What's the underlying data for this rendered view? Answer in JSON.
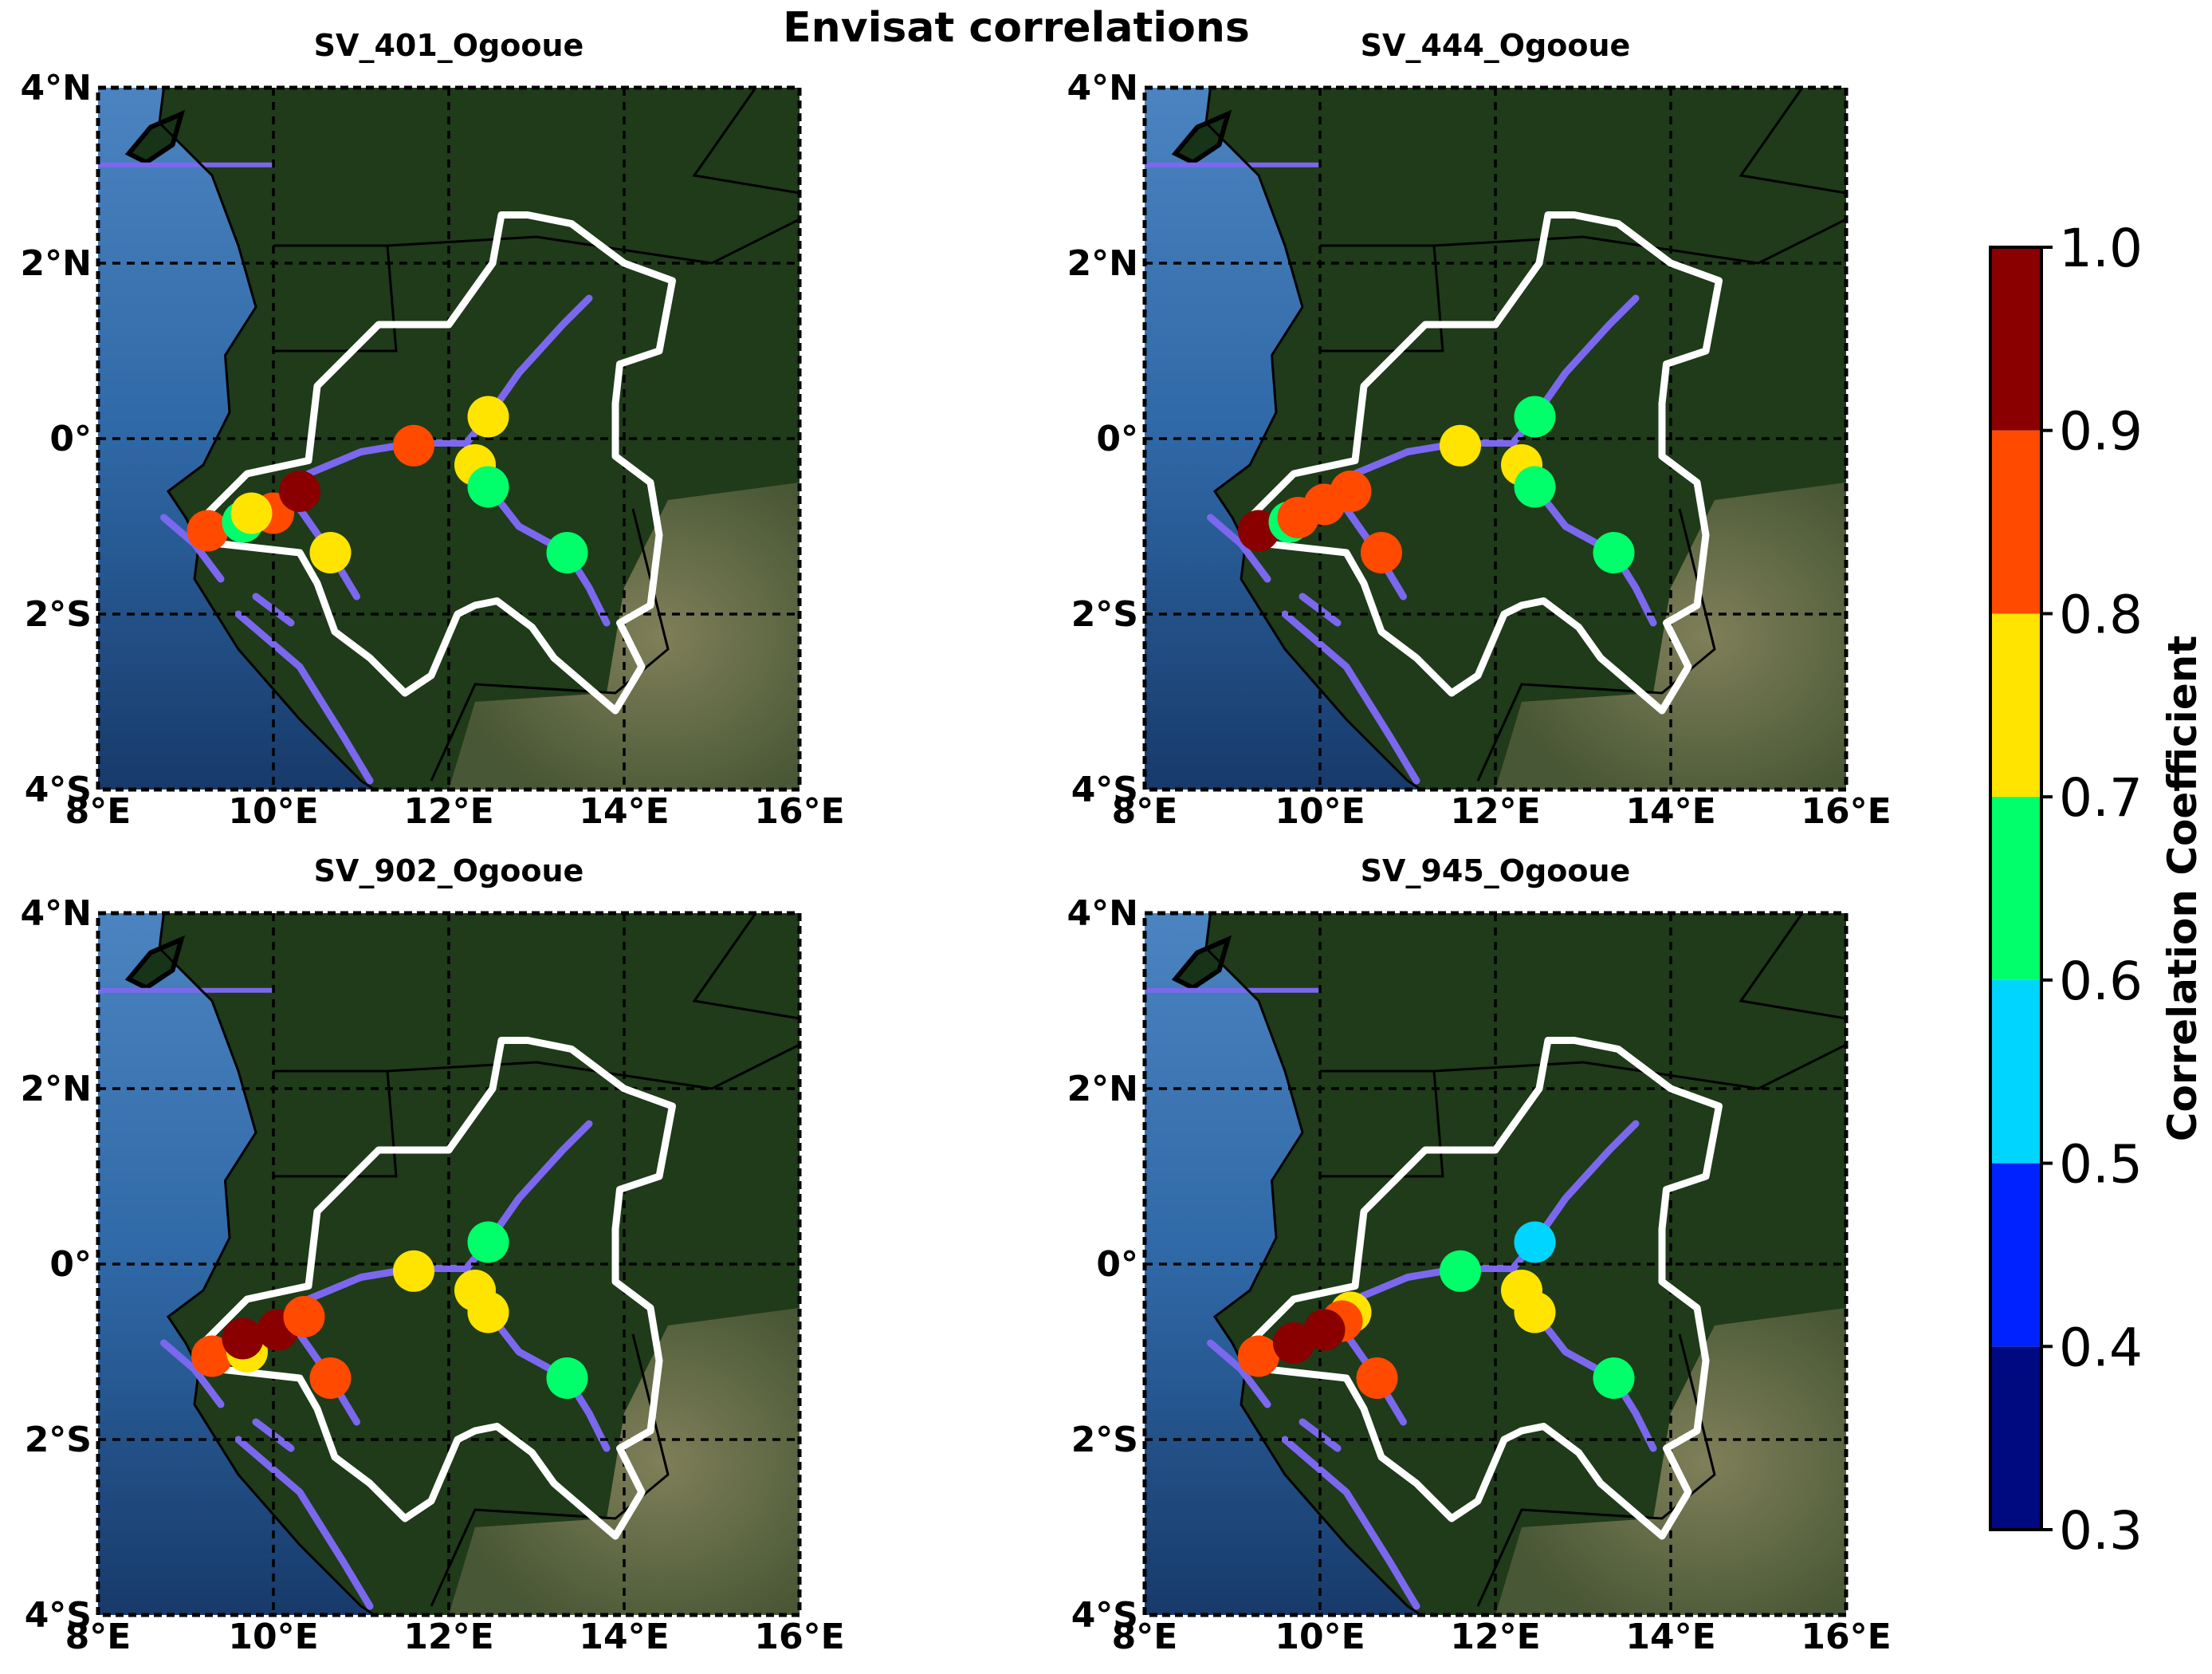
{
  "figure": {
    "title": "Envisat correlations"
  },
  "map_extent": {
    "lon": [
      8,
      16
    ],
    "lat": [
      -4,
      4
    ]
  },
  "x_ticks": [
    {
      "value": 8,
      "label": "8°E"
    },
    {
      "value": 10,
      "label": "10°E"
    },
    {
      "value": 12,
      "label": "12°E"
    },
    {
      "value": 14,
      "label": "14°E"
    },
    {
      "value": 16,
      "label": "16°E"
    }
  ],
  "y_ticks": [
    {
      "value": 4,
      "label": "4°N"
    },
    {
      "value": 2,
      "label": "2°N"
    },
    {
      "value": 0,
      "label": "0°"
    },
    {
      "value": -2,
      "label": "2°S"
    },
    {
      "value": -4,
      "label": "4°S"
    }
  ],
  "colors": {
    "ocean": "#2f69a8",
    "land": "#1f3b1a",
    "savanna": "#7d7b58",
    "river": "#7b68ee",
    "basin_outline": "#ffffff",
    "gridline": "#000000"
  },
  "colorbar": {
    "label": "Correlation Coefficient",
    "ticks": [
      "1.0",
      "0.9",
      "0.8",
      "0.7",
      "0.6",
      "0.5",
      "0.4",
      "0.3"
    ],
    "bins": [
      {
        "min": 0.3,
        "max": 0.4,
        "color": "#000a80"
      },
      {
        "min": 0.4,
        "max": 0.5,
        "color": "#0022ff"
      },
      {
        "min": 0.5,
        "max": 0.6,
        "color": "#00d5ff"
      },
      {
        "min": 0.6,
        "max": 0.7,
        "color": "#00ff6a"
      },
      {
        "min": 0.7,
        "max": 0.8,
        "color": "#ffe400"
      },
      {
        "min": 0.8,
        "max": 0.9,
        "color": "#ff4a00"
      },
      {
        "min": 0.9,
        "max": 1.0,
        "color": "#8a0000"
      }
    ]
  },
  "panels": [
    {
      "title": "SV_401_Ogooue",
      "stations": [
        {
          "lon": 9.25,
          "lat": -1.05,
          "r": 0.85
        },
        {
          "lon": 9.65,
          "lat": -0.95,
          "r": 0.65
        },
        {
          "lon": 10.0,
          "lat": -0.85,
          "r": 0.85
        },
        {
          "lon": 10.3,
          "lat": -0.6,
          "r": 0.95
        },
        {
          "lon": 9.75,
          "lat": -0.85,
          "r": 0.75
        },
        {
          "lon": 10.65,
          "lat": -1.3,
          "r": 0.75
        },
        {
          "lon": 11.6,
          "lat": -0.08,
          "r": 0.85
        },
        {
          "lon": 12.45,
          "lat": 0.25,
          "r": 0.75
        },
        {
          "lon": 12.3,
          "lat": -0.3,
          "r": 0.75
        },
        {
          "lon": 12.45,
          "lat": -0.55,
          "r": 0.65
        },
        {
          "lon": 13.35,
          "lat": -1.3,
          "r": 0.65
        }
      ]
    },
    {
      "title": "SV_444_Ogooue",
      "stations": [
        {
          "lon": 9.3,
          "lat": -1.05,
          "r": 0.95
        },
        {
          "lon": 9.65,
          "lat": -0.95,
          "r": 0.65
        },
        {
          "lon": 9.75,
          "lat": -0.9,
          "r": 0.85
        },
        {
          "lon": 10.05,
          "lat": -0.75,
          "r": 0.85
        },
        {
          "lon": 10.35,
          "lat": -0.6,
          "r": 0.85
        },
        {
          "lon": 10.7,
          "lat": -1.3,
          "r": 0.85
        },
        {
          "lon": 11.6,
          "lat": -0.08,
          "r": 0.75
        },
        {
          "lon": 12.45,
          "lat": 0.25,
          "r": 0.65
        },
        {
          "lon": 12.3,
          "lat": -0.3,
          "r": 0.75
        },
        {
          "lon": 12.45,
          "lat": -0.55,
          "r": 0.65
        },
        {
          "lon": 13.35,
          "lat": -1.3,
          "r": 0.65
        }
      ]
    },
    {
      "title": "SV_902_Ogooue",
      "stations": [
        {
          "lon": 9.3,
          "lat": -1.05,
          "r": 0.85
        },
        {
          "lon": 9.7,
          "lat": -1.0,
          "r": 0.75
        },
        {
          "lon": 9.65,
          "lat": -0.85,
          "r": 0.95
        },
        {
          "lon": 10.05,
          "lat": -0.75,
          "r": 0.95
        },
        {
          "lon": 10.35,
          "lat": -0.6,
          "r": 0.85
        },
        {
          "lon": 10.65,
          "lat": -1.3,
          "r": 0.85
        },
        {
          "lon": 11.6,
          "lat": -0.08,
          "r": 0.75
        },
        {
          "lon": 12.45,
          "lat": 0.25,
          "r": 0.65
        },
        {
          "lon": 12.3,
          "lat": -0.3,
          "r": 0.75
        },
        {
          "lon": 12.45,
          "lat": -0.55,
          "r": 0.75
        },
        {
          "lon": 13.35,
          "lat": -1.3,
          "r": 0.65
        }
      ]
    },
    {
      "title": "SV_945_Ogooue",
      "stations": [
        {
          "lon": 9.3,
          "lat": -1.05,
          "r": 0.85
        },
        {
          "lon": 10.35,
          "lat": -0.55,
          "r": 0.75
        },
        {
          "lon": 10.25,
          "lat": -0.65,
          "r": 0.85
        },
        {
          "lon": 9.7,
          "lat": -0.9,
          "r": 0.95
        },
        {
          "lon": 10.05,
          "lat": -0.75,
          "r": 0.95
        },
        {
          "lon": 10.65,
          "lat": -1.3,
          "r": 0.85
        },
        {
          "lon": 11.6,
          "lat": -0.08,
          "r": 0.65
        },
        {
          "lon": 12.45,
          "lat": 0.25,
          "r": 0.55
        },
        {
          "lon": 12.3,
          "lat": -0.3,
          "r": 0.75
        },
        {
          "lon": 12.45,
          "lat": -0.55,
          "r": 0.75
        },
        {
          "lon": 13.35,
          "lat": -1.3,
          "r": 0.65
        }
      ]
    }
  ]
}
